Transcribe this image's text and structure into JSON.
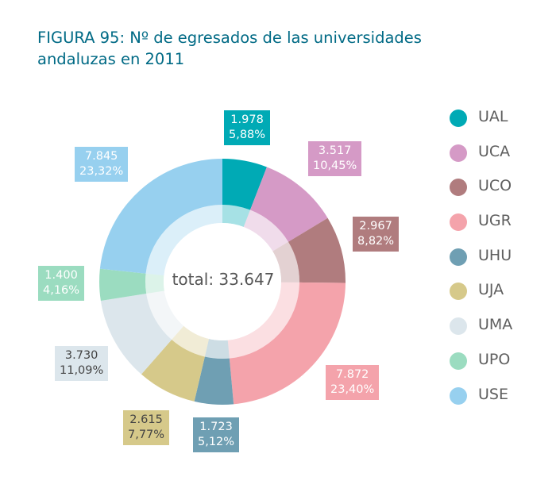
{
  "title": {
    "line1": "FIGURA 95: Nº de egresados de las universidades",
    "line2": "andaluzas en 2011"
  },
  "total_label": "total: 33.647",
  "chart_data": {
    "type": "pie",
    "variant": "donut",
    "title": "FIGURA 95: Nº de egresados de las universidades andaluzas en 2011",
    "total": 33647,
    "slices": [
      {
        "name": "UAL",
        "value": 1978,
        "value_label": "1.978",
        "percent_label": "5,88%",
        "color": "#00aab5",
        "text_color": "#ffffff"
      },
      {
        "name": "UCA",
        "value": 3517,
        "value_label": "3.517",
        "percent_label": "10,45%",
        "color": "#d59ac6",
        "text_color": "#ffffff"
      },
      {
        "name": "UCO",
        "value": 2967,
        "value_label": "2.967",
        "percent_label": "8,82%",
        "color": "#b07c7e",
        "text_color": "#ffffff"
      },
      {
        "name": "UGR",
        "value": 7872,
        "value_label": "7.872",
        "percent_label": "23,40%",
        "color": "#f4a3ab",
        "text_color": "#ffffff"
      },
      {
        "name": "UHU",
        "value": 1723,
        "value_label": "1.723",
        "percent_label": "5,12%",
        "color": "#6f9fb3",
        "text_color": "#ffffff"
      },
      {
        "name": "UJA",
        "value": 2615,
        "value_label": "2.615",
        "percent_label": "7,77%",
        "color": "#d6c98a",
        "text_color": "#444444"
      },
      {
        "name": "UMA",
        "value": 3730,
        "value_label": "3.730",
        "percent_label": "11,09%",
        "color": "#dce6ec",
        "text_color": "#444444"
      },
      {
        "name": "UPO",
        "value": 1400,
        "value_label": "1.400",
        "percent_label": "4,16%",
        "color": "#9bdcc0",
        "text_color": "#ffffff"
      },
      {
        "name": "USE",
        "value": 7845,
        "value_label": "7.845",
        "percent_label": "23,32%",
        "color": "#97d0ef",
        "text_color": "#ffffff"
      }
    ],
    "legend_position": "right"
  }
}
